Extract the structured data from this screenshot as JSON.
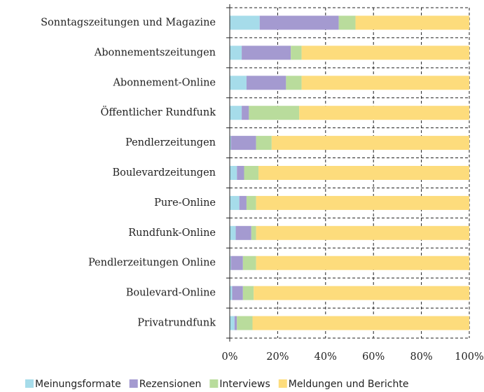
{
  "chart_data": {
    "type": "stacked-barh",
    "categories": [
      "Sonntagszeitungen und Magazine",
      "Abonnementszeitungen",
      "Abonnement-Online",
      "Öffentlicher Rundfunk",
      "Pendlerzeitungen",
      "Boulevardzeitungen",
      "Pure-Online",
      "Rundfunk-Online",
      "Pendlerzeitungen Online",
      "Boulevard-Online",
      "Privatrundfunk"
    ],
    "series": [
      {
        "name": "Meinungsformate",
        "color": "#a6dcea",
        "values": [
          12.5,
          5,
          7,
          5,
          0.5,
          3,
          4,
          2.5,
          0.5,
          1,
          2
        ]
      },
      {
        "name": "Rezensionen",
        "color": "#a49ad0",
        "values": [
          33,
          20.5,
          16.5,
          3,
          10.5,
          3,
          3,
          6.5,
          5,
          4.5,
          1
        ]
      },
      {
        "name": "Interviews",
        "color": "#b9dc9c",
        "values": [
          7,
          4.5,
          6.5,
          21,
          6.5,
          6,
          4,
          2,
          5.5,
          4.5,
          6.5
        ]
      },
      {
        "name": "Meldungen und Berichte",
        "color": "#fddc7c",
        "values": [
          47.5,
          70,
          70,
          71,
          82.5,
          88,
          89,
          89,
          89,
          90,
          90.5
        ]
      }
    ],
    "xlim": [
      0,
      100
    ],
    "xticks": [
      {
        "value": 0,
        "label": "0%"
      },
      {
        "value": 20,
        "label": "20%"
      },
      {
        "value": 40,
        "label": "40%"
      },
      {
        "value": 60,
        "label": "60%"
      },
      {
        "value": 80,
        "label": "80%"
      },
      {
        "value": 100,
        "label": "100%"
      }
    ],
    "grid": true,
    "legend": "bottom"
  }
}
